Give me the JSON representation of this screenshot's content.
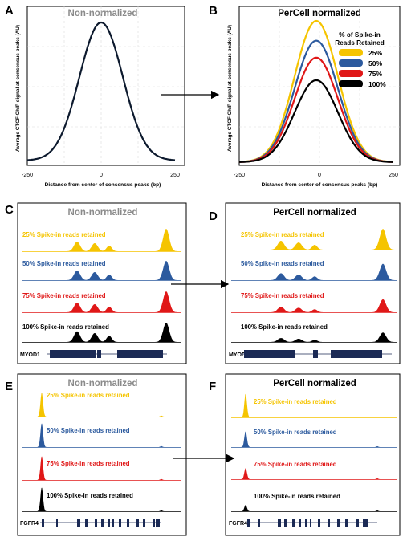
{
  "panels": {
    "A": {
      "letter": "A",
      "title": "Non-normalized",
      "ylabel": "Average CTCF ChIP signal at consensus peaks (AU)",
      "xlabel": "Distance from center of consensus peaks (bp)",
      "xticks": [
        "-250",
        "0",
        "250"
      ]
    },
    "B": {
      "letter": "B",
      "title": "PerCell normalized",
      "ylabel": "Average CTCF ChIP signal at consensus peaks (AU)",
      "xlabel": "Distance from center of consensus peaks (bp)",
      "xticks": [
        "-250",
        "0",
        "250"
      ],
      "legend_title_line1": "% of Spike-in",
      "legend_title_line2": "Reads Retained",
      "legend": [
        "25%",
        "50%",
        "75%",
        "100%"
      ]
    },
    "C": {
      "letter": "C",
      "title": "Non-normalized",
      "gene": "MYOD1"
    },
    "D": {
      "letter": "D",
      "title": "PerCell normalized",
      "gene": "MYOD1"
    },
    "E": {
      "letter": "E",
      "title": "Non-normalized",
      "gene": "FGFR4"
    },
    "F": {
      "letter": "F",
      "title": "PerCell normalized",
      "gene": "FGFR4"
    }
  },
  "track_labels": [
    "25% Spike-in reads retained",
    "50% Spike-in reads retained",
    "75% Spike-in reads retained",
    "100% Spike-in reads retained"
  ],
  "colors": {
    "s25": "#f5c400",
    "s50": "#2c5a9e",
    "s75": "#e01818",
    "s100": "#000000",
    "gene": "#1b2a55",
    "nonnorm_title": "#8a8a8a",
    "curveA": "#0d1a2e"
  },
  "chart_data": [
    {
      "type": "line",
      "panel": "A",
      "title": "Non-normalized",
      "xlabel": "Distance from center of consensus peaks (bp)",
      "ylabel": "Average CTCF ChIP signal at consensus peaks (AU)",
      "xlim": [
        -250,
        250
      ],
      "ylim": [
        0,
        1
      ],
      "grid": true,
      "series": [
        {
          "values": [
            0.02,
            0.1,
            0.5,
            0.9,
            1.0,
            0.9,
            0.5,
            0.1,
            0.02
          ],
          "x": [
            -250,
            -150,
            -75,
            -30,
            0,
            30,
            75,
            150,
            250
          ]
        }
      ]
    },
    {
      "type": "line",
      "panel": "B",
      "title": "PerCell normalized",
      "xlabel": "Distance from center of consensus peaks (bp)",
      "ylabel": "Average CTCF ChIP signal at consensus peaks (AU)",
      "xlim": [
        -250,
        250
      ],
      "ylim": [
        0,
        1
      ],
      "grid": true,
      "legend": "top-right",
      "series": [
        {
          "name": "25%",
          "peak": 1.0
        },
        {
          "name": "50%",
          "peak": 0.86
        },
        {
          "name": "75%",
          "peak": 0.74
        },
        {
          "name": "100%",
          "peak": 0.58
        }
      ]
    }
  ]
}
